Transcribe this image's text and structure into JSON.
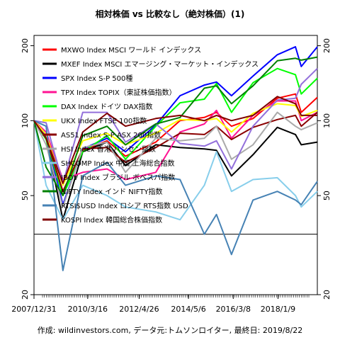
{
  "chart_data": {
    "type": "line",
    "title": "相対株価 vs 比較なし（絶対株価）(1)",
    "caption": "作成: wildinvestors.com, データ元:トムソンロイター, 最終日: 2019/8/22",
    "scale": "log",
    "ylim": [
      20,
      220
    ],
    "yticks": [
      20,
      50,
      100,
      200
    ],
    "reference_line": 35,
    "xlim": [
      "2007-12-31",
      "2019-08-22"
    ],
    "xtick_labels": [
      "2007/12/31",
      "2010/3/16",
      "2012/4/26",
      "2014/5/6",
      "2016/3/8",
      "2018/1/9"
    ],
    "xtick_dates": [
      "2007-12-31",
      "2010-03-16",
      "2012-04-26",
      "2014-05-06",
      "2016-03-08",
      "2018-01-09"
    ],
    "x": [
      "2007-12-31",
      "2008-06-30",
      "2009-03-09",
      "2009-12-31",
      "2010-12-31",
      "2011-10-04",
      "2012-12-31",
      "2013-12-31",
      "2014-12-31",
      "2015-06-30",
      "2016-02-11",
      "2016-12-30",
      "2017-12-29",
      "2018-09-28",
      "2018-12-24",
      "2019-08-22"
    ],
    "series": [
      {
        "name": "MXWO Index MSCI ワールド インデックス",
        "color": "#ff0000",
        "values": [
          100,
          85,
          52,
          76,
          83,
          72,
          82,
          100,
          103,
          108,
          95,
          102,
          123,
          128,
          108,
          124
        ]
      },
      {
        "name": "MXEF Index MSCI エマージング・マーケット・インデックス",
        "color": "#000000",
        "values": [
          100,
          85,
          40,
          75,
          82,
          66,
          80,
          78,
          77,
          76,
          60,
          73,
          94,
          88,
          80,
          82
        ]
      },
      {
        "name": "SPX Index S-P 500種",
        "color": "#0000ff",
        "values": [
          100,
          86,
          46,
          77,
          85,
          75,
          96,
          126,
          139,
          143,
          126,
          151,
          184,
          198,
          165,
          198
        ]
      },
      {
        "name": "TPX Index TOPIX（東証株価指数）",
        "color": "#ff1493",
        "values": [
          100,
          90,
          58,
          62,
          64,
          58,
          62,
          90,
          97,
          110,
          85,
          105,
          120,
          120,
          100,
          108
        ]
      },
      {
        "name": "DAX Index ドイツ DAX指数",
        "color": "#00ff00",
        "values": [
          100,
          84,
          50,
          75,
          87,
          70,
          95,
          118,
          122,
          141,
          108,
          142,
          162,
          153,
          128,
          148
        ]
      },
      {
        "name": "UKX Index FTSE 100指数",
        "color": "#ffff00",
        "values": [
          100,
          88,
          55,
          83,
          89,
          80,
          89,
          101,
          100,
          102,
          90,
          107,
          117,
          115,
          104,
          110
        ]
      },
      {
        "name": "AS51 Index S-P ASX 200指数",
        "color": "#8b0000",
        "values": [
          100,
          85,
          52,
          77,
          78,
          68,
          78,
          89,
          88,
          95,
          84,
          94,
          101,
          105,
          95,
          108
        ]
      },
      {
        "name": "HSI Index 香港 ハンセン指数",
        "color": "#aaaaaa",
        "values": [
          100,
          80,
          45,
          78,
          82,
          62,
          85,
          83,
          85,
          95,
          70,
          80,
          108,
          95,
          92,
          98
        ]
      },
      {
        "name": "SHCOMP Index 中国 上海総合指数",
        "color": "#87ceeb",
        "values": [
          100,
          55,
          40,
          55,
          50,
          45,
          43,
          40,
          55,
          75,
          52,
          58,
          59,
          50,
          45,
          52
        ]
      },
      {
        "name": "IBOV Index ブラジル ボベスパ指数",
        "color": "#9370db",
        "values": [
          100,
          98,
          56,
          108,
          108,
          82,
          97,
          81,
          79,
          83,
          64,
          95,
          121,
          123,
          140,
          162
        ]
      },
      {
        "name": "NIFTY Index インド NIFTY指数",
        "color": "#008000",
        "values": [
          100,
          65,
          50,
          87,
          95,
          80,
          97,
          103,
          135,
          138,
          117,
          138,
          174,
          178,
          175,
          180
        ]
      },
      {
        "name": "RTSI$USD Index ロシア RTS指数 USD",
        "color": "#4682b4",
        "values": [
          100,
          95,
          25,
          60,
          68,
          55,
          60,
          58,
          35,
          42,
          29,
          48,
          52,
          48,
          46,
          57
        ]
      },
      {
        "name": "KOSPI Index 韓国総合株価指数",
        "color": "#800000",
        "values": [
          100,
          85,
          56,
          90,
          107,
          95,
          102,
          105,
          100,
          105,
          100,
          105,
          125,
          117,
          105,
          105
        ]
      }
    ]
  }
}
